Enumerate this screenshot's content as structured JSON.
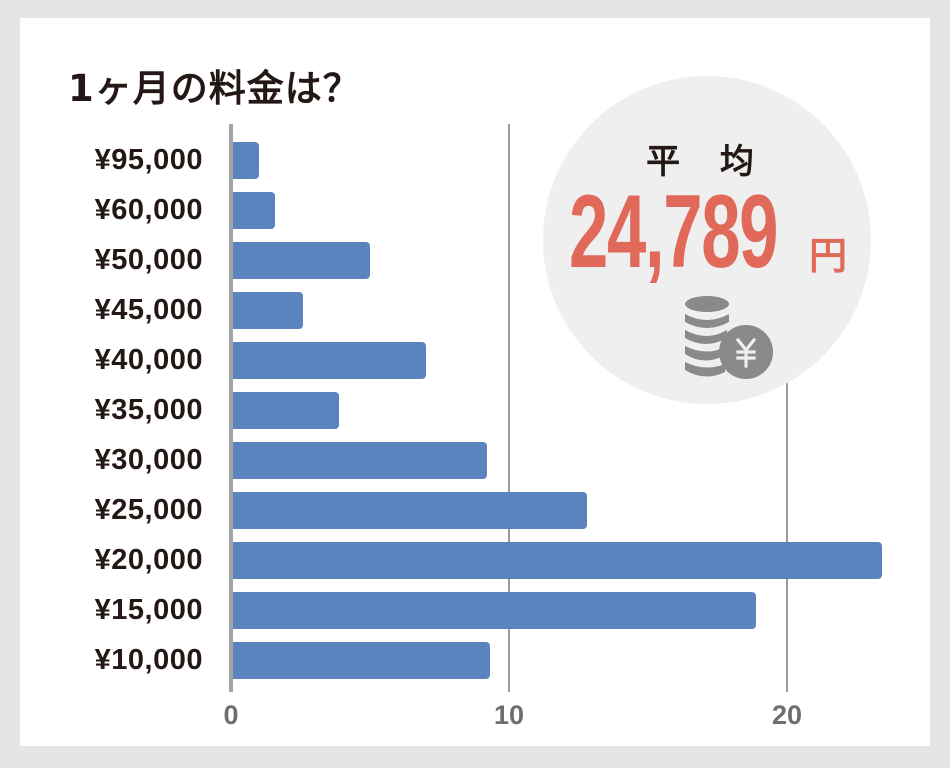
{
  "title": "1ヶ月の料金は？",
  "badge": {
    "label": "平 均",
    "value": "24,789",
    "unit": "円",
    "icon": "yen-coins-icon"
  },
  "axis": {
    "ticks": [
      "0",
      "10",
      "20"
    ]
  },
  "colors": {
    "bar": "#5b84bf",
    "accent": "#e0695a",
    "badge_bg": "#efefef",
    "icon": "#8a8a8a",
    "page_bg": "#e5e5e5"
  },
  "chart_data": {
    "type": "bar",
    "orientation": "horizontal",
    "title": "1ヶ月の料金は？",
    "categories": [
      "¥95,000",
      "¥60,000",
      "¥50,000",
      "¥45,000",
      "¥40,000",
      "¥35,000",
      "¥30,000",
      "¥25,000",
      "¥20,000",
      "¥15,000",
      "¥10,000"
    ],
    "values": [
      1,
      1.6,
      5,
      2.6,
      7,
      3.9,
      9.2,
      12.8,
      23.4,
      18.9,
      9.3
    ],
    "xlabel": "",
    "ylabel": "",
    "xlim": [
      0,
      24
    ],
    "xticks": [
      0,
      10,
      20
    ],
    "grid": "vertical at 10 and 20",
    "legend": "none",
    "annotation": "平均 24,789円"
  }
}
